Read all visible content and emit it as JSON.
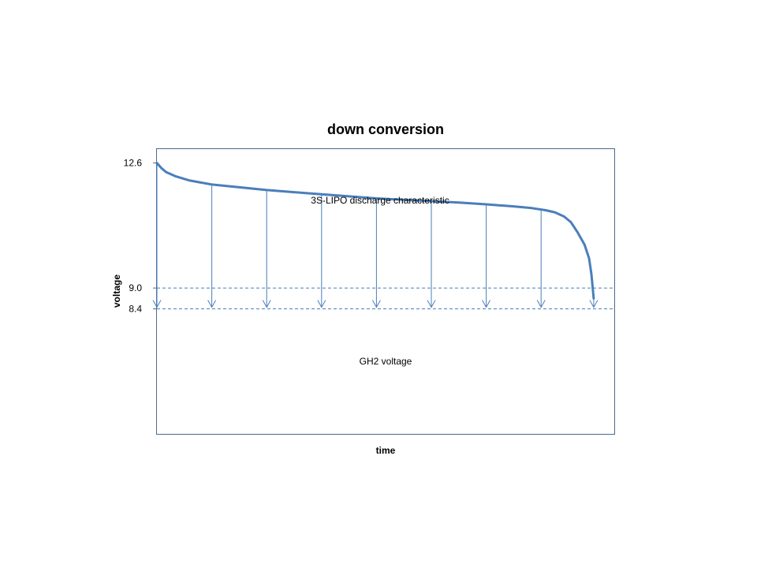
{
  "chart_data": {
    "type": "line",
    "title": "down conversion",
    "xlabel": "time",
    "ylabel": "voltage",
    "ylim": [
      4.8,
      13.0
    ],
    "xlim": [
      0,
      100
    ],
    "y_ticks": [
      "12.6",
      "9.0",
      "8.4"
    ],
    "grid": false,
    "series": [
      {
        "name": "3S-LIPO discharge characteristic",
        "color": "#4a7ebb",
        "x": [
          0,
          1,
          2,
          4,
          7,
          12,
          18,
          24,
          30,
          36,
          42,
          48,
          54,
          60,
          66,
          72,
          78,
          82,
          85,
          87,
          89,
          90.5,
          92,
          93.5,
          94.5,
          95,
          95.5
        ],
        "y": [
          12.6,
          12.45,
          12.34,
          12.22,
          12.1,
          11.98,
          11.9,
          11.82,
          11.76,
          11.7,
          11.64,
          11.58,
          11.54,
          11.5,
          11.46,
          11.41,
          11.35,
          11.3,
          11.24,
          11.18,
          11.06,
          10.9,
          10.6,
          10.25,
          9.85,
          9.4,
          8.7
        ]
      }
    ],
    "reference_lines": [
      {
        "y": 9.0,
        "style": "dashed",
        "color": "#4a7ebb"
      },
      {
        "y": 8.4,
        "style": "dashed",
        "color": "#4a7ebb",
        "label": "GH2 voltage"
      }
    ],
    "conversion_arrows": {
      "color": "#4a7ebb",
      "target_y": 8.4,
      "x": [
        0,
        12,
        24,
        36,
        48,
        60,
        72,
        84,
        95.5
      ]
    },
    "annotations": [
      {
        "text": "3S-LIPO discharge characteristic"
      },
      {
        "text": "GH2 voltage"
      }
    ]
  }
}
